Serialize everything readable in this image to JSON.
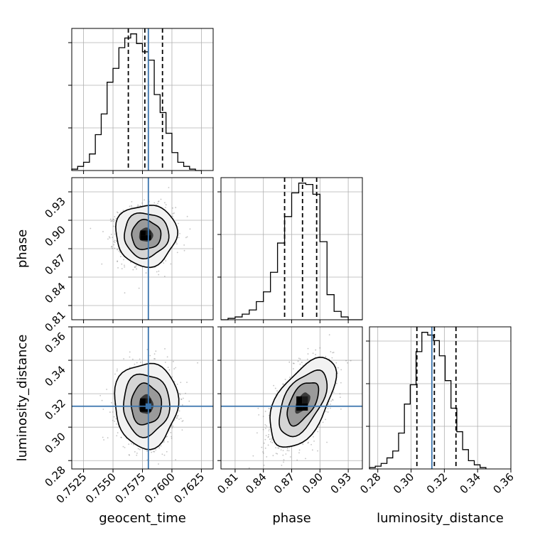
{
  "chart_data": {
    "type": "corner",
    "grid": true,
    "truth_color": "#3a74ad",
    "parameters": [
      {
        "name": "geocent_time",
        "label": "geocent_time",
        "range": [
          0.7515,
          0.7635
        ],
        "ticks": [
          0.7525,
          0.755,
          0.7575,
          0.76,
          0.7625
        ],
        "tick_labels": [
          "0.7525",
          "0.7550",
          "0.7575",
          "0.7600",
          "0.7625"
        ],
        "truth": 0.758,
        "quantiles": [
          0.7563,
          0.7577,
          0.7592
        ],
        "hist_edges": [
          0.7515,
          0.752,
          0.7525,
          0.753,
          0.7535,
          0.754,
          0.7545,
          0.755,
          0.7555,
          0.756,
          0.7565,
          0.757,
          0.7575,
          0.758,
          0.7585,
          0.759,
          0.7595,
          0.76,
          0.7605,
          0.761,
          0.7615,
          0.762,
          0.7625
        ],
        "hist_counts": [
          0.01,
          0.03,
          0.06,
          0.12,
          0.26,
          0.41,
          0.64,
          0.74,
          0.89,
          0.96,
          0.99,
          0.92,
          0.86,
          0.8,
          0.55,
          0.42,
          0.27,
          0.13,
          0.06,
          0.03,
          0.01,
          0.0
        ]
      },
      {
        "name": "phase",
        "label": "phase",
        "range": [
          0.795,
          0.945
        ],
        "ticks": [
          0.81,
          0.84,
          0.87,
          0.9,
          0.93
        ],
        "tick_labels": [
          "0.81",
          "0.84",
          "0.87",
          "0.90",
          "0.93"
        ],
        "truth": null,
        "quantiles": [
          0.8625,
          0.8815,
          0.8965
        ],
        "hist_edges": [
          0.795,
          0.8025,
          0.81,
          0.8175,
          0.825,
          0.8325,
          0.84,
          0.8475,
          0.855,
          0.8625,
          0.87,
          0.8775,
          0.885,
          0.8925,
          0.9,
          0.9075,
          0.915,
          0.9225,
          0.93,
          0.9375,
          0.945
        ],
        "hist_counts": [
          0.0,
          0.01,
          0.02,
          0.04,
          0.07,
          0.13,
          0.2,
          0.34,
          0.55,
          0.74,
          0.91,
          0.98,
          0.97,
          0.9,
          0.56,
          0.18,
          0.06,
          0.02,
          0.0,
          0.0
        ]
      },
      {
        "name": "luminosity_distance",
        "label": "luminosity_distance",
        "range": [
          0.275,
          0.36
        ],
        "ticks": [
          0.28,
          0.3,
          0.32,
          0.34,
          0.36
        ],
        "tick_labels": [
          "0.28",
          "0.30",
          "0.32",
          "0.34",
          "0.36"
        ],
        "truth": 0.3125,
        "quantiles": [
          0.3035,
          0.314,
          0.327
        ],
        "hist_edges": [
          0.275,
          0.2785,
          0.282,
          0.2855,
          0.289,
          0.2925,
          0.296,
          0.2995,
          0.303,
          0.3065,
          0.31,
          0.3135,
          0.317,
          0.3205,
          0.324,
          0.3275,
          0.331,
          0.3345,
          0.338,
          0.3415,
          0.345
        ],
        "hist_counts": [
          0.01,
          0.02,
          0.04,
          0.08,
          0.13,
          0.26,
          0.47,
          0.61,
          0.85,
          0.99,
          0.97,
          0.93,
          0.82,
          0.64,
          0.44,
          0.27,
          0.14,
          0.06,
          0.03,
          0.01
        ]
      }
    ],
    "pairs": [
      {
        "x": "geocent_time",
        "y": "phase",
        "center": [
          0.7578,
          0.8845
        ],
        "sd": [
          0.00108,
          0.0135
        ],
        "corr": 0.0
      },
      {
        "x": "geocent_time",
        "y": "luminosity_distance",
        "center": [
          0.7578,
          0.3135
        ],
        "sd": [
          0.00112,
          0.0106
        ],
        "corr": 0.0
      },
      {
        "x": "phase",
        "y": "luminosity_distance",
        "center": [
          0.8815,
          0.3145
        ],
        "sd": [
          0.0145,
          0.0112
        ],
        "corr": 0.55
      }
    ]
  }
}
